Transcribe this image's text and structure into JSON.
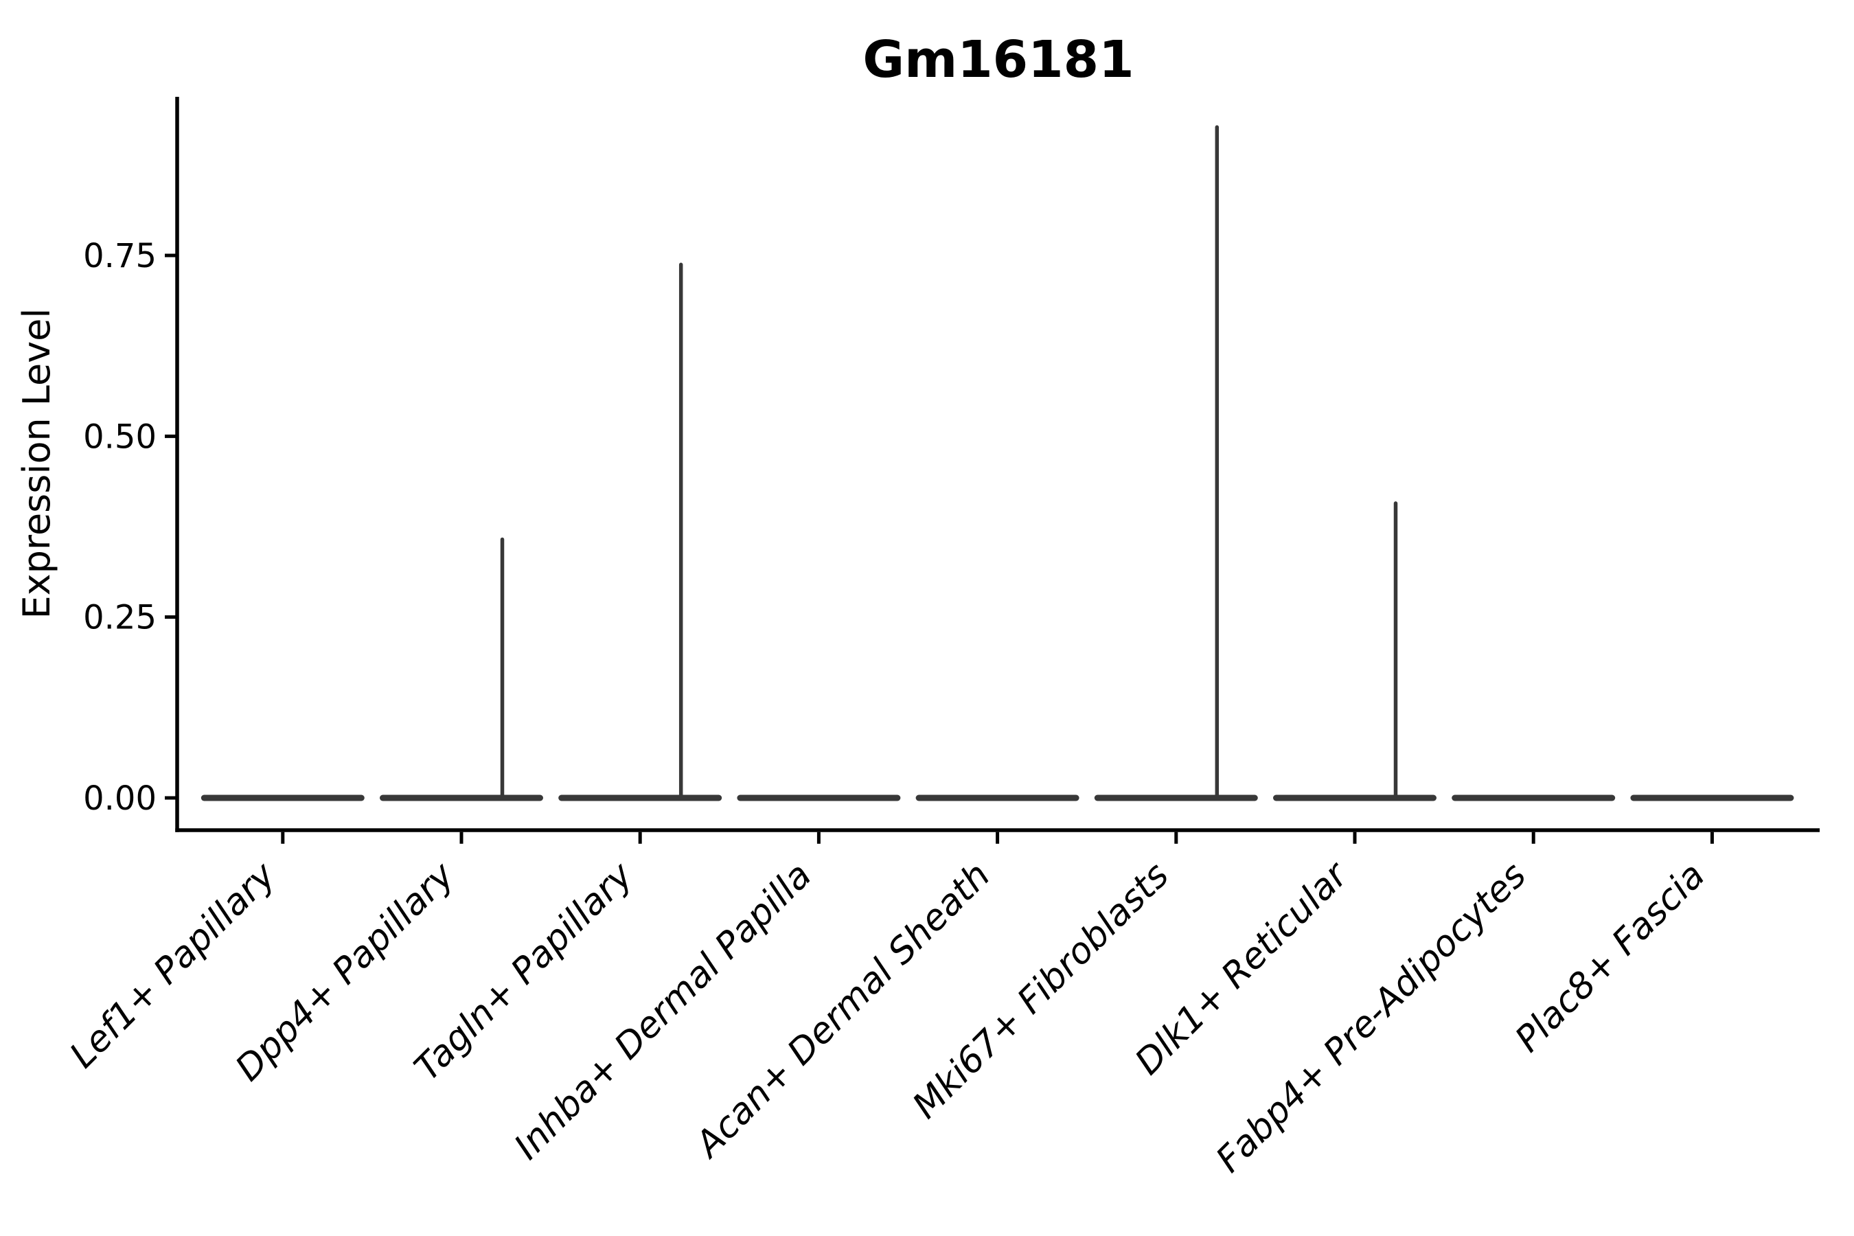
{
  "figure": {
    "title": "Gm16181",
    "y_axis": {
      "label": "Expression Level",
      "tick_labels": [
        "0.00",
        "0.25",
        "0.50",
        "0.75"
      ]
    },
    "x_axis": {
      "categories": [
        "Lef1+ Papillary",
        "Dpp4+ Papillary",
        "Tagln+ Papillary",
        "Inhba+ Dermal Papilla",
        "Acan+ Dermal Sheath",
        "Mki67+ Fibroblasts",
        "Dlk1+ Reticular",
        "Fabp4+ Pre-Adipocytes",
        "Plac8+ Fascia"
      ]
    }
  },
  "chart_data": {
    "type": "violin",
    "title": "Gm16181",
    "xlabel": "",
    "ylabel": "Expression Level",
    "categories": [
      "Lef1+ Papillary",
      "Dpp4+ Papillary",
      "Tagln+ Papillary",
      "Inhba+ Dermal Papilla",
      "Acan+ Dermal Sheath",
      "Mki67+ Fibroblasts",
      "Dlk1+ Reticular",
      "Fabp4+ Pre-Adipocytes",
      "Plac8+ Fascia"
    ],
    "y_ticks": [
      0.0,
      0.25,
      0.5,
      0.75
    ],
    "ylim": [
      0,
      0.97
    ],
    "grid": false,
    "legend": false,
    "description": "Each violin is collapsed to a flat bar at expression 0; categories with rare expressing cells show a thin density spike up to the peak value.",
    "violins": [
      {
        "category": "Lef1+ Papillary",
        "baseline_value": 0,
        "peak_value": 0
      },
      {
        "category": "Dpp4+ Papillary",
        "baseline_value": 0,
        "peak_value": 0.36
      },
      {
        "category": "Tagln+ Papillary",
        "baseline_value": 0,
        "peak_value": 0.74
      },
      {
        "category": "Inhba+ Dermal Papilla",
        "baseline_value": 0,
        "peak_value": 0
      },
      {
        "category": "Acan+ Dermal Sheath",
        "baseline_value": 0,
        "peak_value": 0
      },
      {
        "category": "Mki67+ Fibroblasts",
        "baseline_value": 0,
        "peak_value": 0.93
      },
      {
        "category": "Dlk1+ Reticular",
        "baseline_value": 0,
        "peak_value": 0.41
      },
      {
        "category": "Fabp4+ Pre-Adipocytes",
        "baseline_value": 0,
        "peak_value": 0
      },
      {
        "category": "Plac8+ Fascia",
        "baseline_value": 0,
        "peak_value": 0
      }
    ]
  },
  "style": {
    "violin_color": "#383838",
    "axis_color": "#000000",
    "text_color": "#000000",
    "background": "#ffffff"
  }
}
